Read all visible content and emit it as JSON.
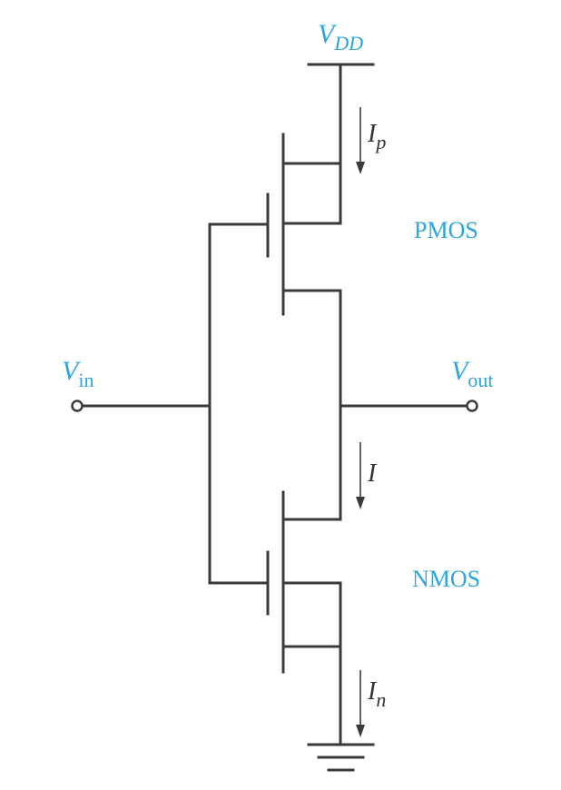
{
  "labels": {
    "vdd_main": "V",
    "vdd_sub": "DD",
    "vin_main": "V",
    "vin_sub": "in",
    "vout_main": "V",
    "vout_sub": "out",
    "pmos": "PMOS",
    "nmos": "NMOS",
    "ip_main": "I",
    "ip_sub": "p",
    "i": "I",
    "in_main": "I",
    "in_sub": "n"
  },
  "colors": {
    "label_blue": "#2ca6e0",
    "wire": "#3a3a3a"
  }
}
